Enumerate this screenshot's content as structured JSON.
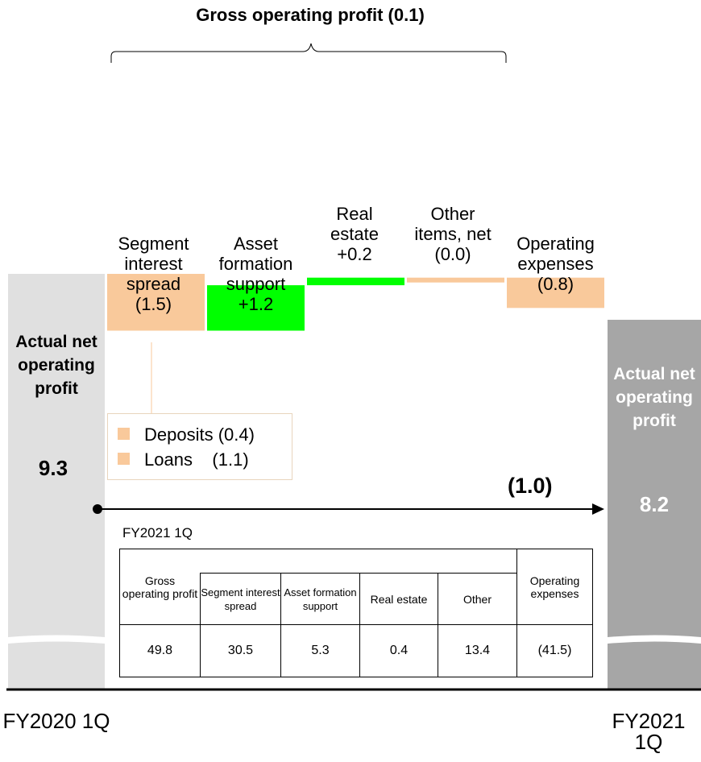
{
  "chart_data": {
    "type": "waterfall",
    "title": "Gross operating profit (0.1)",
    "start": {
      "label": "Actual net operating profit",
      "value": 9.3,
      "period": "FY2020 1Q",
      "value_label": "9.3"
    },
    "end": {
      "label": "Actual net operating profit",
      "value": 8.2,
      "period": "FY2021 1Q",
      "value_label": "8.2"
    },
    "steps": [
      {
        "name": "Segment interest spread",
        "lines": [
          "Segment",
          "interest",
          "spread",
          "(1.5)"
        ],
        "value": -1.5,
        "color": "#f9c99b"
      },
      {
        "name": "Asset formation support",
        "lines": [
          "Asset",
          "formation",
          "support",
          "+1.2"
        ],
        "value": 1.2,
        "color": "#00ff00"
      },
      {
        "name": "Real estate",
        "lines": [
          "Real",
          "estate",
          "+0.2"
        ],
        "value": 0.2,
        "color": "#00ff00"
      },
      {
        "name": "Other items, net",
        "lines": [
          "Other",
          "items, net",
          "(0.0)"
        ],
        "value": 0.0,
        "color": "#f9c99b"
      },
      {
        "name": "Operating expenses",
        "lines": [
          "Operating",
          "expenses",
          "(0.8)"
        ],
        "value": -0.8,
        "color": "#f9c99b"
      }
    ],
    "total_change": "(1.0)",
    "breakdown": [
      {
        "label": "Deposits",
        "value": "(0.4)"
      },
      {
        "label": "Loans",
        "value": "(1.1)"
      }
    ]
  },
  "table": {
    "caption": "FY2021 1Q",
    "headers": [
      "Gross operating profit",
      "Segment interest spread",
      "Asset formation support",
      "Real estate",
      "Other",
      "Operating expenses"
    ],
    "values": [
      "49.8",
      "30.5",
      "5.3",
      "0.4",
      "13.4",
      "(41.5)"
    ]
  },
  "colors": {
    "negative": "#f9c99b",
    "positive": "#00ff00",
    "start_bar": "#e0e0e0",
    "end_bar": "#a6a6a6"
  }
}
